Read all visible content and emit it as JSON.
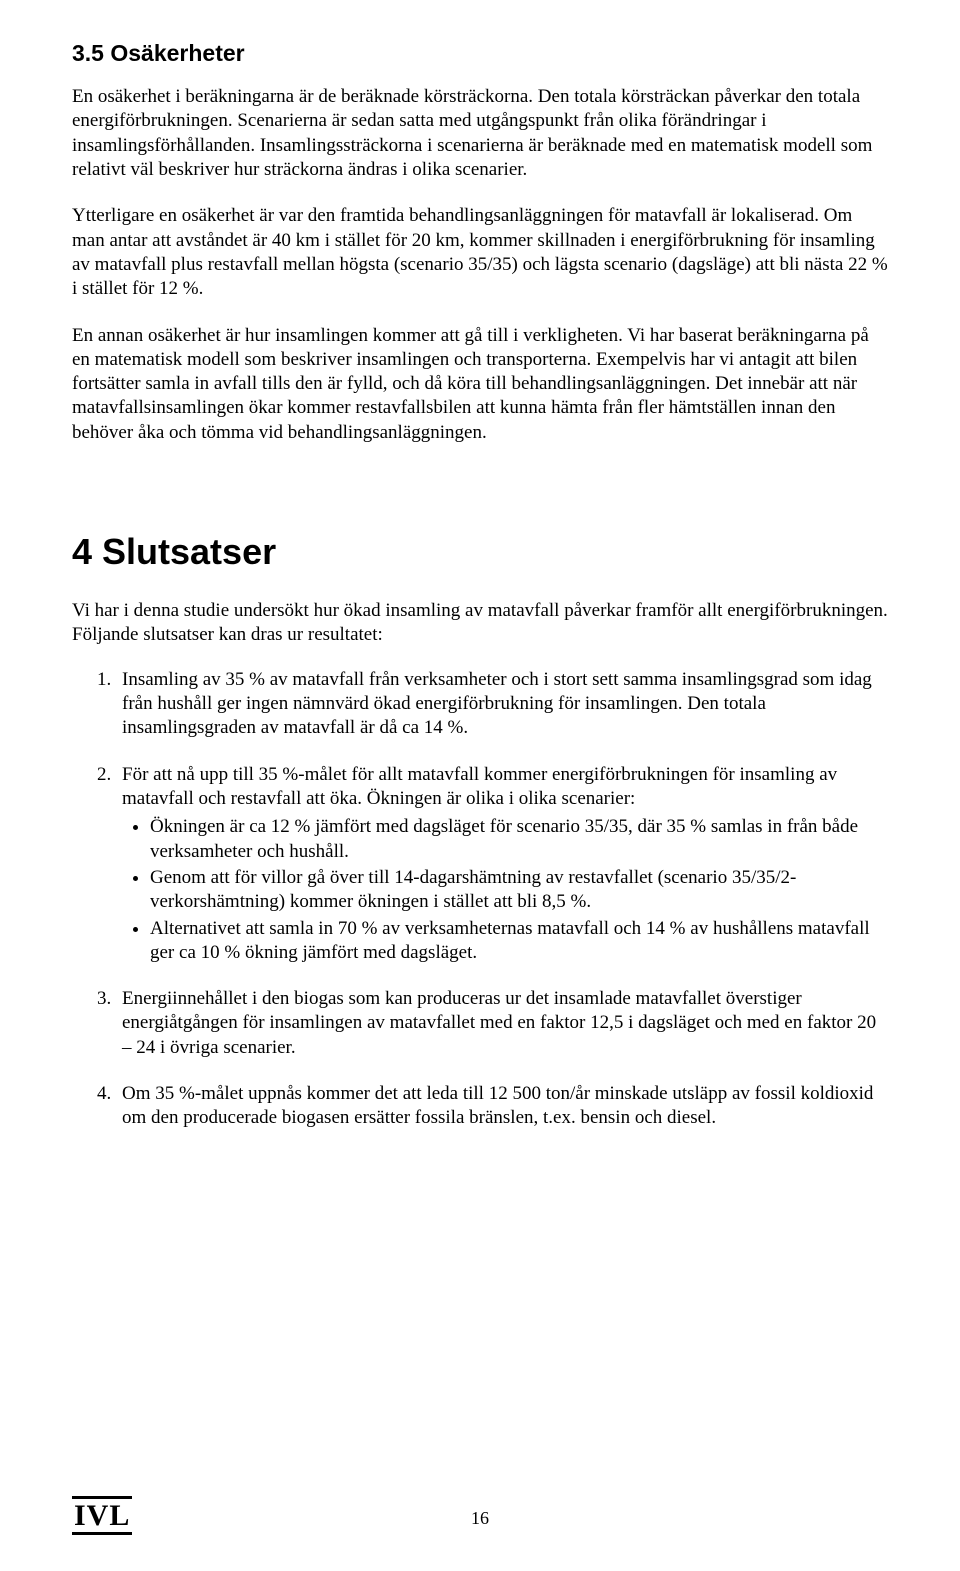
{
  "section35": {
    "heading": "3.5 Osäkerheter",
    "p1": "En osäkerhet i beräkningarna är de beräknade körsträckorna. Den totala körsträckan påverkar den totala energiförbrukningen. Scenarierna är sedan satta med utgångspunkt från olika förändringar i insamlingsförhållanden. Insamlingssträckorna i scenarierna är beräknade med en matematisk modell som relativt väl beskriver hur sträckorna ändras i olika scenarier.",
    "p2": "Ytterligare en osäkerhet är var den framtida behandlingsanläggningen för matavfall är lokaliserad. Om man antar att avståndet är 40 km i stället för 20 km, kommer skillnaden i energiförbrukning för insamling av matavfall plus restavfall mellan högsta (scenario 35/35) och lägsta scenario (dagsläge) att bli nästa 22 % i stället för 12 %.",
    "p3": "En annan osäkerhet är hur insamlingen kommer att gå till i verkligheten. Vi har baserat beräkningarna på en matematisk modell som beskriver insamlingen och transporterna. Exempelvis har vi antagit att bilen fortsätter samla in avfall tills den är fylld, och då köra till behandlingsanläggningen. Det innebär att när matavfallsinsamlingen ökar kommer restavfallsbilen att kunna hämta från fler hämtställen innan den behöver åka och tömma vid behandlingsanläggningen."
  },
  "chapter4": {
    "heading": "4  Slutsatser",
    "intro": "Vi har i denna studie undersökt hur ökad insamling av matavfall påverkar framför allt energiförbrukningen. Följande slutsatser kan dras ur resultatet:",
    "items": [
      "Insamling av 35 % av matavfall från verksamheter och i stort sett samma insamlingsgrad som idag från hushåll ger ingen nämnvärd ökad energiförbrukning för insamlingen. Den totala insamlingsgraden av matavfall är då ca 14 %.",
      "För att nå upp till 35 %-målet för allt matavfall kommer energiförbrukningen för insamling av matavfall och restavfall att öka. Ökningen är olika i olika scenarier:",
      "Energiinnehållet i den biogas som kan produceras ur det insamlade matavfallet överstiger energiåtgången för insamlingen av matavfallet med en faktor 12,5 i dagsläget och med en faktor 20 – 24 i övriga scenarier.",
      "Om 35 %-målet uppnås kommer det att leda till 12 500 ton/år minskade utsläpp av fossil koldioxid om den producerade biogasen ersätter fossila bränslen, t.ex. bensin och diesel."
    ],
    "item2_bullets": [
      "Ökningen är ca 12 % jämfört med dagsläget för scenario 35/35, där 35 % samlas in från både verksamheter och hushåll.",
      "Genom att för villor gå över till 14-dagarshämtning av restavfallet (scenario 35/35/2-verkorshämtning) kommer ökningen i stället att bli 8,5 %.",
      "Alternativet att samla in 70 % av verksamheternas matavfall och 14 % av hushållens matavfall ger ca 10 % ökning jämfört med dagsläget."
    ]
  },
  "footer": {
    "logo": "IVL",
    "page": "16"
  }
}
